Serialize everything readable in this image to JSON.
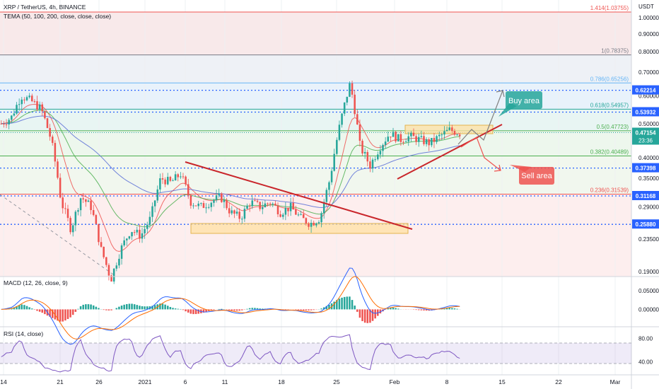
{
  "header": {
    "symbol_line": "XRP / TetherUS, 4h, BINANCE",
    "tema_line": "TEMA (50, 100, 200, close, close, close)",
    "currency": "USDT"
  },
  "price_axis_ticks": [
    "1.00000",
    "0.90000",
    "0.80000",
    "0.70000",
    "0.60000",
    "0.50000",
    "0.45000",
    "0.40000",
    "0.35000",
    "0.29000",
    "0.23500",
    "0.19000"
  ],
  "fib_levels": [
    {
      "label": "1.414(1.03755)",
      "price": 1.03755,
      "color": "#ef5350"
    },
    {
      "label": "1(0.78375)",
      "price": 0.78375,
      "color": "#787b86"
    },
    {
      "label": "0.786(0.65256)",
      "price": 0.65256,
      "color": "#64b5f6"
    },
    {
      "label": "0.618(0.54957)",
      "price": 0.54957,
      "color": "#26a69a"
    },
    {
      "label": "0.5(0.47723)",
      "price": 0.47723,
      "color": "#4caf50"
    },
    {
      "label": "0.382(0.40489)",
      "price": 0.40489,
      "color": "#4caf50"
    },
    {
      "label": "0.236(0.31539)",
      "price": 0.31539,
      "color": "#ef5350"
    }
  ],
  "h_levels": [
    {
      "label": "0.62214",
      "price": 0.62214,
      "bg": "#2962ff"
    },
    {
      "label": "0.53932",
      "price": 0.53932,
      "bg": "#2962ff"
    },
    {
      "label": "0.37398",
      "price": 0.37398,
      "bg": "#2962ff"
    },
    {
      "label": "0.31168",
      "price": 0.31168,
      "bg": "#2962ff"
    },
    {
      "label": "0.25880",
      "price": 0.2588,
      "bg": "#2962ff"
    }
  ],
  "last_price": {
    "label": "0.47154",
    "price": 0.47154,
    "countdown": "23:36"
  },
  "annotations": {
    "buy": "Buy area",
    "sell": "Sell area"
  },
  "macd": {
    "title": "MACD (12, 26, close, 9)",
    "ticks": [
      "0.05000",
      "0.00000"
    ]
  },
  "rsi": {
    "title": "RSI (14, close)",
    "ticks": [
      "80.00",
      "40.00"
    ],
    "band": [
      70,
      30
    ]
  },
  "x_axis_labels": [
    "14",
    "21",
    "26",
    "2021",
    "6",
    "11",
    "18",
    "25",
    "Feb",
    "8",
    "15",
    "22",
    "Mar"
  ],
  "chart_data": {
    "type": "line",
    "title": "XRP / TetherUS, 4h, BINANCE",
    "x": [
      "14",
      "21",
      "26",
      "2021",
      "6",
      "11",
      "18",
      "25",
      "Feb",
      "8",
      "15",
      "22",
      "Mar"
    ],
    "price_series": {
      "name": "XRP / TetherUS",
      "values": [
        0.5,
        0.52,
        0.6,
        0.58,
        0.55,
        0.45,
        0.3,
        0.25,
        0.31,
        0.29,
        0.22,
        0.18,
        0.22,
        0.25,
        0.24,
        0.27,
        0.35,
        0.34,
        0.36,
        0.3,
        0.29,
        0.3,
        0.31,
        0.28,
        0.27,
        0.3,
        0.29,
        0.3,
        0.28,
        0.29,
        0.27,
        0.26,
        0.27,
        0.35,
        0.5,
        0.65,
        0.43,
        0.38,
        0.43,
        0.47,
        0.45,
        0.46,
        0.45,
        0.44,
        0.46,
        0.48,
        0.47
      ]
    },
    "y_scale": "log",
    "ylim": [
      0.17,
      1.1
    ],
    "macd_ylim": [
      -0.035,
      0.08
    ],
    "rsi_ylim": [
      20,
      95
    ]
  }
}
